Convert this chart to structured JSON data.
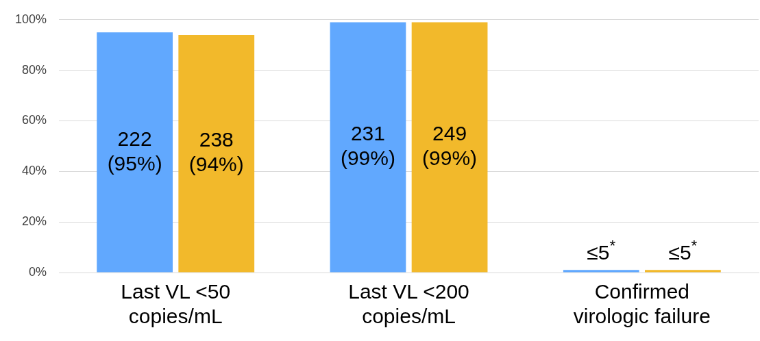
{
  "chart_data": {
    "type": "bar",
    "categories": [
      "Last VL <50 copies/mL",
      "Last VL <200 copies/mL",
      "Confirmed virologic failure"
    ],
    "series": [
      {
        "color": "#61a8fe",
        "values": [
          95,
          99,
          1
        ],
        "value_labels": [
          "222 (95%)",
          "231 (99%)",
          "≤5$^{*}$"
        ]
      },
      {
        "color": "#f2b92b",
        "values": [
          94,
          99,
          1
        ],
        "value_labels": [
          "238 (94%)",
          "249 (99%)",
          "≤5$^{*}$"
        ]
      }
    ],
    "ylim": [
      0,
      100
    ],
    "yticks": [
      {
        "value": 0,
        "label": "0%"
      },
      {
        "value": 20,
        "label": "20%"
      },
      {
        "value": 40,
        "label": "40%"
      },
      {
        "value": 60,
        "label": "60%"
      },
      {
        "value": 80,
        "label": "80%"
      },
      {
        "value": 100,
        "label": "100%"
      }
    ],
    "grid": "y"
  }
}
